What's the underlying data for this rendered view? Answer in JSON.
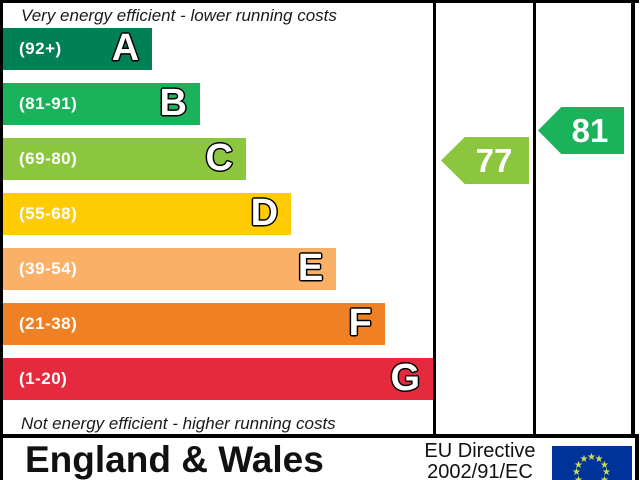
{
  "chart_data": {
    "type": "bar",
    "variant": "epc-energy-efficiency-rating",
    "top_caption": "Very energy efficient - lower running costs",
    "bottom_caption": "Not energy efficient - higher running costs",
    "bands": [
      {
        "letter": "A",
        "range_label": "(92+)",
        "score_min": 92,
        "score_max": 100,
        "color": "#008054",
        "width_pct": 34.7
      },
      {
        "letter": "B",
        "range_label": "(81-91)",
        "score_min": 81,
        "score_max": 91,
        "color": "#1ab25a",
        "width_pct": 45.8
      },
      {
        "letter": "C",
        "range_label": "(69-80)",
        "score_min": 69,
        "score_max": 80,
        "color": "#8cc63f",
        "width_pct": 56.5
      },
      {
        "letter": "D",
        "range_label": "(55-68)",
        "score_min": 55,
        "score_max": 68,
        "color": "#ffcb05",
        "width_pct": 67.0
      },
      {
        "letter": "E",
        "range_label": "(39-54)",
        "score_min": 39,
        "score_max": 54,
        "color": "#fbb068",
        "width_pct": 77.5
      },
      {
        "letter": "F",
        "range_label": "(21-38)",
        "score_min": 21,
        "score_max": 38,
        "color": "#ef8023",
        "width_pct": 88.8
      },
      {
        "letter": "G",
        "range_label": "(1-20)",
        "score_min": 1,
        "score_max": 20,
        "color": "#e52a3d",
        "width_pct": 100
      }
    ],
    "current": {
      "value": 77,
      "color": "#8cc63f"
    },
    "potential": {
      "value": 81,
      "color": "#1ab25a"
    }
  },
  "footer": {
    "region": "England & Wales",
    "directive_line1": "EU Directive",
    "directive_line2": "2002/91/EC",
    "flag": {
      "background": "#003399",
      "star_color": "#cddc4a",
      "star_char": "★",
      "star_count": 12
    }
  }
}
